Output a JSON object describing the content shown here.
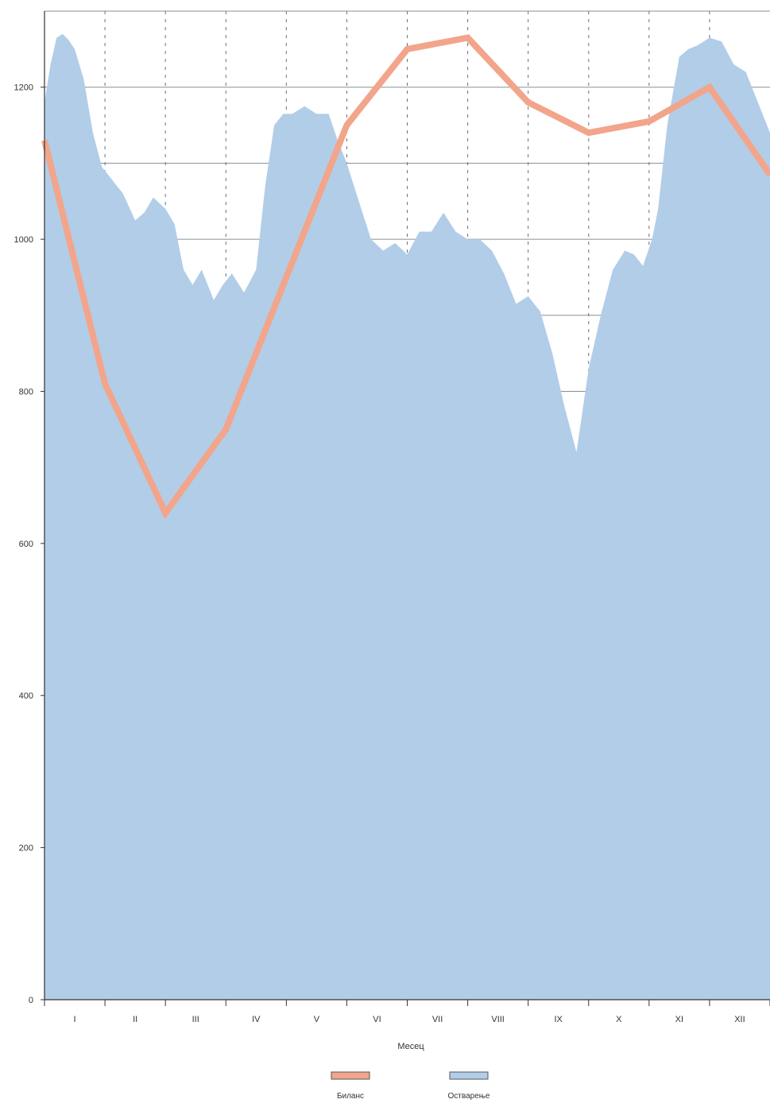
{
  "chart_data": {
    "type": "line",
    "xlabel": "Месец",
    "ylabel": "",
    "ylim": [
      0,
      1300
    ],
    "yticks": [
      0,
      200,
      400,
      600,
      800,
      1000,
      1200
    ],
    "categories": [
      "I",
      "II",
      "III",
      "IV",
      "V",
      "VI",
      "VII",
      "VIII",
      "IX",
      "X",
      "XI",
      "XII"
    ],
    "grid": true,
    "legend_position": "bottom-center",
    "series": [
      {
        "name": "Биланс",
        "kind": "line",
        "color": "#f2a58a",
        "x": [
          0,
          1,
          2,
          3,
          4,
          5,
          6,
          7,
          8,
          9,
          10,
          11,
          12
        ],
        "values": [
          1130,
          810,
          640,
          750,
          950,
          1150,
          1250,
          1265,
          1180,
          1140,
          1155,
          1200,
          1085
        ]
      },
      {
        "name": "Остварење",
        "kind": "area",
        "color": "#b2cde8",
        "x": [
          0,
          0.1,
          0.2,
          0.3,
          0.4,
          0.5,
          0.65,
          0.8,
          0.95,
          1.1,
          1.3,
          1.5,
          1.65,
          1.8,
          2.0,
          2.15,
          2.3,
          2.45,
          2.6,
          2.8,
          2.95,
          3.1,
          3.3,
          3.5,
          3.65,
          3.8,
          3.95,
          4.1,
          4.3,
          4.5,
          4.7,
          4.85,
          5.0,
          5.2,
          5.4,
          5.6,
          5.8,
          6.0,
          6.2,
          6.4,
          6.6,
          6.8,
          7.0,
          7.2,
          7.4,
          7.6,
          7.8,
          8.0,
          8.2,
          8.4,
          8.6,
          8.8,
          9.0,
          9.2,
          9.4,
          9.6,
          9.75,
          9.9,
          10.05,
          10.15,
          10.3,
          10.5,
          10.65,
          10.8,
          11.0,
          11.2,
          11.4,
          11.6,
          11.8,
          12.0
        ],
        "values": [
          1180,
          1230,
          1265,
          1270,
          1262,
          1250,
          1210,
          1140,
          1095,
          1080,
          1060,
          1025,
          1035,
          1055,
          1040,
          1020,
          960,
          940,
          960,
          920,
          940,
          955,
          930,
          960,
          1070,
          1150,
          1165,
          1165,
          1175,
          1165,
          1165,
          1130,
          1100,
          1050,
          1000,
          985,
          995,
          980,
          1010,
          1010,
          1035,
          1010,
          1000,
          1000,
          985,
          955,
          915,
          925,
          905,
          850,
          780,
          720,
          830,
          900,
          960,
          985,
          980,
          965,
          1000,
          1040,
          1150,
          1240,
          1250,
          1255,
          1265,
          1260,
          1230,
          1220,
          1180,
          1140
        ]
      }
    ]
  }
}
